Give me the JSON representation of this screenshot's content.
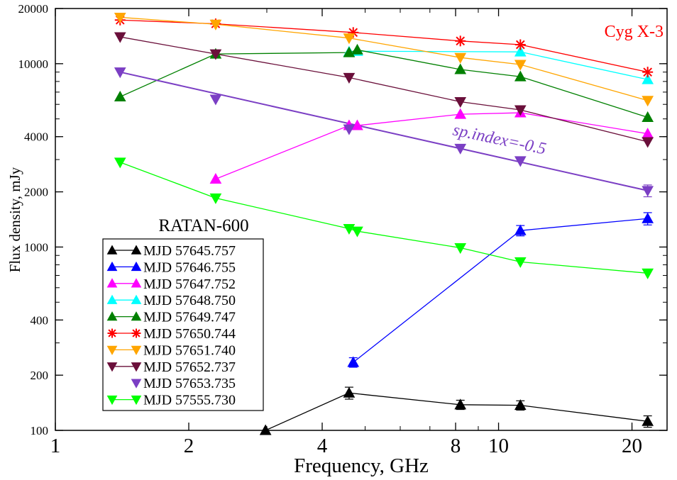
{
  "chart_data": {
    "type": "line",
    "title": "",
    "xlabel": "Frequency,  GHz",
    "ylabel": "Flux  density, mJy",
    "x_scale": "log",
    "y_scale": "log",
    "xlim": [
      1,
      24
    ],
    "ylim": [
      100,
      20000
    ],
    "grid": false,
    "legend_placement": "bottom-left",
    "legend_title": "RATAN-600",
    "x_ticks": [
      {
        "value": 1,
        "label": "1"
      },
      {
        "value": 2,
        "label": "2"
      },
      {
        "value": 4,
        "label": "4"
      },
      {
        "value": 8,
        "label": "8"
      },
      {
        "value": 10,
        "label": "10"
      },
      {
        "value": 20,
        "label": "20"
      }
    ],
    "y_ticks": [
      {
        "value": 100,
        "label": "100"
      },
      {
        "value": 200,
        "label": "200"
      },
      {
        "value": 400,
        "label": "400"
      },
      {
        "value": 1000,
        "label": "1000"
      },
      {
        "value": 2000,
        "label": "2000"
      },
      {
        "value": 4000,
        "label": "4000"
      },
      {
        "value": 10000,
        "label": "10000"
      },
      {
        "value": 20000,
        "label": "20000"
      }
    ],
    "annotations": [
      {
        "text": "Cyg X-3",
        "color": "#ff0000"
      },
      {
        "text": "sp.index=-0.5",
        "color": "#7b3fc4"
      }
    ],
    "series": [
      {
        "name": "MJD 57645.757",
        "color": "#000000",
        "marker": "triangle-up",
        "x": [
          2.98,
          4.6,
          8.2,
          11.2,
          21.7
        ],
        "y": [
          100,
          160,
          138,
          137,
          112
        ],
        "err": [
          0,
          12,
          8,
          8,
          8
        ]
      },
      {
        "name": "MJD 57646.755",
        "color": "#0000ff",
        "marker": "triangle-up",
        "x": [
          4.7,
          11.2,
          21.7
        ],
        "y": [
          235,
          1230,
          1430
        ],
        "err": [
          14,
          80,
          110
        ]
      },
      {
        "name": "MJD 57647.752",
        "color": "#ff00ff",
        "marker": "triangle-up",
        "x": [
          2.3,
          4.6,
          4.8,
          8.2,
          11.2,
          21.7
        ],
        "y": [
          2350,
          4600,
          4600,
          5300,
          5400,
          4150
        ],
        "err": [
          0,
          0,
          0,
          0,
          0,
          0
        ]
      },
      {
        "name": "MJD 57648.750",
        "color": "#00ffff",
        "marker": "triangle-up",
        "x": [
          4.6,
          4.8,
          11.2,
          21.7
        ],
        "y": [
          11600,
          11700,
          11600,
          8200
        ],
        "err": [
          0,
          0,
          0,
          0
        ]
      },
      {
        "name": "MJD 57649.747",
        "color": "#008000",
        "marker": "triangle-up",
        "x": [
          1.4,
          2.3,
          4.6,
          4.8,
          8.2,
          11.2,
          21.7
        ],
        "y": [
          6600,
          11300,
          11500,
          11900,
          9300,
          8500,
          5100
        ],
        "err": [
          0,
          0,
          0,
          0,
          0,
          0,
          0
        ]
      },
      {
        "name": "MJD 57650.744",
        "color": "#ff0000",
        "marker": "asterisk",
        "x": [
          1.4,
          2.3,
          4.7,
          8.2,
          11.2,
          21.7
        ],
        "y": [
          17300,
          16500,
          14800,
          13300,
          12700,
          9000
        ],
        "err": [
          0,
          0,
          0,
          0,
          0,
          0
        ]
      },
      {
        "name": "MJD 57651.740",
        "color": "#ffa500",
        "marker": "triangle-down",
        "x": [
          1.4,
          2.3,
          4.6,
          8.2,
          11.2,
          21.7
        ],
        "y": [
          17900,
          16400,
          13800,
          10800,
          9900,
          6300
        ],
        "err": [
          0,
          0,
          0,
          0,
          0,
          0
        ]
      },
      {
        "name": "MJD 57652.737",
        "color": "#6a0f3a",
        "marker": "triangle-down",
        "x": [
          1.4,
          2.3,
          4.6,
          8.2,
          11.2,
          21.7
        ],
        "y": [
          14000,
          11300,
          8400,
          6200,
          5600,
          3750
        ],
        "err": [
          0,
          0,
          0,
          0,
          0,
          0
        ]
      },
      {
        "name": "MJD 57653.735",
        "color": "#7b3fc4",
        "marker": "triangle-down",
        "x": [
          1.4,
          2.3,
          4.6,
          8.2,
          11.2,
          21.7
        ],
        "y": [
          9000,
          6400,
          4400,
          3450,
          2950,
          2030
        ],
        "err": [
          0,
          0,
          0,
          0,
          0,
          150
        ]
      },
      {
        "name": "MJD 57555.730",
        "color": "#00ff00",
        "marker": "triangle-down",
        "x": [
          1.4,
          2.3,
          4.6,
          4.8,
          8.2,
          11.2,
          21.7
        ],
        "y": [
          2900,
          1850,
          1260,
          1220,
          990,
          830,
          720
        ],
        "err": [
          0,
          0,
          0,
          0,
          0,
          0,
          0
        ]
      }
    ]
  }
}
